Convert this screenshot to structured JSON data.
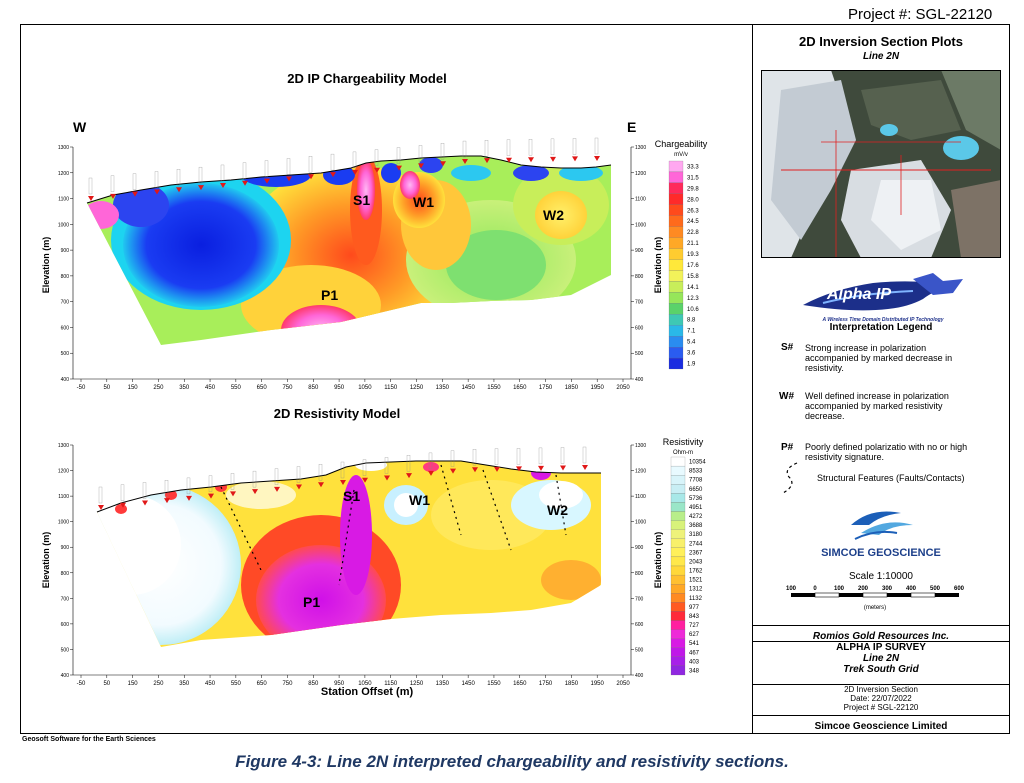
{
  "page": {
    "project_top": "Project #: SGL-22120",
    "caption": "Figure 4-3: Line 2N interpreted chargeability and resistivity sections.",
    "software_credit": "Geosoft Software for the Earth Sciences"
  },
  "chart_data": [
    {
      "type": "heatmap",
      "title": "2D IP Chargeability Model",
      "xlabel": "",
      "ylabel": "Elevation (m)",
      "ylabel_right": "Elevation (m)",
      "direction_left": "W",
      "direction_right": "E",
      "xlim": [
        -50,
        2050
      ],
      "ylim": [
        400,
        1300
      ],
      "x_ticks": [
        "-50",
        "50",
        "150",
        "250",
        "350",
        "450",
        "550",
        "650",
        "750",
        "850",
        "950",
        "1050",
        "1150",
        "1250",
        "1350",
        "1450",
        "1550",
        "1650",
        "1750",
        "1850",
        "1950",
        "2050"
      ],
      "y_ticks": [
        "1300",
        "1200",
        "1100",
        "1000",
        "900",
        "800",
        "700",
        "600",
        "500",
        "400"
      ],
      "legend": {
        "title": "Chargeability",
        "unit": "mV/v",
        "values": [
          "33.3",
          "31.5",
          "29.8",
          "28.0",
          "26.3",
          "24.5",
          "22.8",
          "21.1",
          "19.3",
          "17.6",
          "15.8",
          "14.1",
          "12.3",
          "10.6",
          "8.8",
          "7.1",
          "5.4",
          "3.6",
          "1.9"
        ]
      },
      "annotations": [
        {
          "label": "S1",
          "x": 1000,
          "y": 1090
        },
        {
          "label": "W1",
          "x": 1270,
          "y": 1080
        },
        {
          "label": "W2",
          "x": 1720,
          "y": 1030
        },
        {
          "label": "P1",
          "x": 850,
          "y": 730
        }
      ]
    },
    {
      "type": "heatmap",
      "title": "2D Resistivity Model",
      "xlabel": "Station Offset (m)",
      "ylabel": "Elevation (m)",
      "ylabel_right": "Elevation (m)",
      "xlim": [
        -50,
        2050
      ],
      "ylim": [
        400,
        1300
      ],
      "x_ticks": [
        "-50",
        "50",
        "150",
        "250",
        "350",
        "450",
        "550",
        "650",
        "750",
        "850",
        "950",
        "1050",
        "1150",
        "1250",
        "1350",
        "1450",
        "1550",
        "1650",
        "1750",
        "1850",
        "1950",
        "2050"
      ],
      "y_ticks": [
        "1300",
        "1200",
        "1100",
        "1000",
        "900",
        "800",
        "700",
        "600",
        "500",
        "400"
      ],
      "legend": {
        "title": "Resistivity",
        "unit": "Ohm-m",
        "values": [
          "10354",
          "8533",
          "7708",
          "6650",
          "5736",
          "4951",
          "4272",
          "3688",
          "3180",
          "2744",
          "2367",
          "2043",
          "1762",
          "1521",
          "1312",
          "1132",
          "977",
          "843",
          "727",
          "627",
          "541",
          "467",
          "403",
          "348"
        ]
      },
      "annotations": [
        {
          "label": "S1",
          "x": 1000,
          "y": 1110
        },
        {
          "label": "W1",
          "x": 1270,
          "y": 1080
        },
        {
          "label": "W2",
          "x": 1790,
          "y": 1060
        },
        {
          "label": "P1",
          "x": 870,
          "y": 720
        }
      ]
    }
  ],
  "right_panel": {
    "title": "2D Inversion Section Plots",
    "subtitle": "Line 2N",
    "logo_text": "Alpha IP",
    "logo_tagline": "A Wireless Time Domain Distributed IP Technology",
    "legend_title": "Interpretation Legend",
    "legend": [
      {
        "key": "S#",
        "text": "Strong increase in polarization accompanied by marked decrease in resistivity."
      },
      {
        "key": "W#",
        "text": "Well defined increase in polarization accompanied by marked resistivity decrease."
      },
      {
        "key": "P#",
        "text": "Poorly defined polarizatio with no or high resistivity signature."
      }
    ],
    "structural_text": "Structural Features (Faults/Contacts)",
    "company_logo": "SIMCOE GEOSCIENCE",
    "scale_text": "Scale 1:10000",
    "scale_ticks": [
      "100",
      "0",
      "100",
      "200",
      "300",
      "400",
      "500",
      "600"
    ],
    "scale_unit": "(meters)",
    "client": "Romios Gold Resources Inc.",
    "survey": "ALPHA IP SURVEY",
    "line": "Line 2N",
    "grid": "Trek South Grid",
    "section": "2D Inversion Section",
    "date": "Date: 22/07/2022",
    "project": "Project # SGL-22120",
    "company": "Simcoe Geoscience Limited"
  }
}
